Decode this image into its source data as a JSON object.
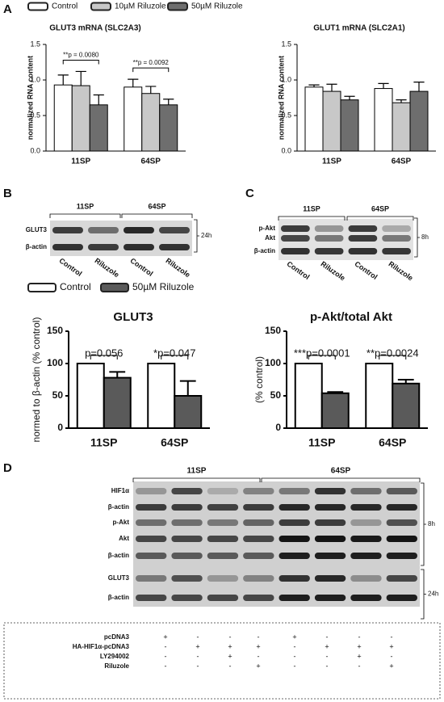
{
  "panel_labels": [
    "A",
    "B",
    "C",
    "D"
  ],
  "chart_data": [
    {
      "type": "bar",
      "title": "GLUT3 mRNA (SLC2A3)",
      "y_label": "normalized RNA content",
      "categories": [
        "11SP",
        "64SP"
      ],
      "series": [
        {
          "name": "Control",
          "color": "#ffffff",
          "values": [
            0.93,
            0.9
          ],
          "errors": [
            0.14,
            0.11
          ]
        },
        {
          "name": "10µM Riluzole",
          "color": "#c8c8c8",
          "values": [
            0.92,
            0.81
          ],
          "errors": [
            0.2,
            0.1
          ]
        },
        {
          "name": "50µM Riluzole",
          "color": "#6e6e6e",
          "values": [
            0.65,
            0.65
          ],
          "errors": [
            0.14,
            0.08
          ]
        }
      ],
      "annotations": [
        "**p = 0.0080",
        "**p = 0.0092"
      ],
      "ylim": [
        0,
        1.5
      ],
      "yticks": [
        {
          "value": 0,
          "label": "0.0"
        },
        0.5,
        {
          "value": 1,
          "label": "1.0"
        },
        1.5
      ]
    },
    {
      "type": "bar",
      "title": "GLUT1 mRNA (SLC2A1)",
      "y_label": "normalized RNA content",
      "categories": [
        "11SP",
        "64SP"
      ],
      "series": [
        {
          "color": "#ffffff",
          "values": [
            0.9,
            0.88
          ],
          "errors": [
            0.03,
            0.07
          ]
        },
        {
          "color": "#c8c8c8",
          "values": [
            0.84,
            0.68
          ],
          "errors": [
            0.1,
            0.04
          ]
        },
        {
          "color": "#6e6e6e",
          "values": [
            0.72,
            0.84
          ],
          "errors": [
            0.05,
            0.13
          ]
        }
      ],
      "annotations": [],
      "ylim": [
        0,
        1.5
      ],
      "yticks": [
        {
          "value": 0,
          "label": "0.0"
        },
        0.5,
        {
          "value": 1,
          "label": "1.0"
        },
        1.5
      ]
    },
    {
      "type": "bar",
      "title": "GLUT3",
      "y_label": "normed to β-actin (% control)",
      "categories": [
        "11SP",
        "64SP"
      ],
      "series": [
        {
          "name": "Control",
          "color": "#ffffff",
          "values": [
            100,
            100
          ],
          "errors": [
            0,
            0
          ]
        },
        {
          "name": "50µM Riluzole",
          "color": "#5a5a5a",
          "values": [
            78,
            50
          ],
          "errors": [
            9,
            23
          ]
        }
      ],
      "annotations": [
        "p=0.056",
        "*p=0.047"
      ],
      "ylim": [
        0,
        150
      ],
      "yticks": [
        0,
        50,
        100,
        150
      ]
    },
    {
      "type": "bar",
      "title": "p-Akt/total Akt",
      "y_label": "(% control)",
      "categories": [
        "11SP",
        "64SP"
      ],
      "series": [
        {
          "color": "#ffffff",
          "values": [
            100,
            100
          ],
          "errors": [
            0,
            0
          ]
        },
        {
          "color": "#5a5a5a",
          "values": [
            54,
            69
          ],
          "errors": [
            2,
            6
          ]
        }
      ],
      "annotations": [
        "***p=0.0001",
        "**p=0.0024"
      ],
      "ylim": [
        0,
        150
      ],
      "yticks": [
        0,
        50,
        100,
        150
      ]
    }
  ],
  "blot_b": {
    "groups": [
      "11SP",
      "64SP"
    ],
    "rows": [
      "GLUT3",
      "β-actin"
    ],
    "time": "24h",
    "lanes": [
      "Control",
      "Riluzole",
      "Control",
      "Riluzole"
    ]
  },
  "blot_c": {
    "groups": [
      "11SP",
      "64SP"
    ],
    "rows": [
      "p-Akt",
      "Akt",
      "β-actin"
    ],
    "time": "8h",
    "lanes": [
      "Control",
      "Riluzole",
      "Control",
      "Riluzole"
    ]
  },
  "blot_d": {
    "groups": [
      "11SP",
      "64SP"
    ],
    "rows": [
      "HIF1α",
      "β-actin",
      "p-Akt",
      "Akt",
      "β-actin",
      "GLUT3",
      "β-actin"
    ],
    "times": [
      "8h",
      "24h"
    ]
  },
  "treatment_table": {
    "rows": [
      {
        "label": "pcDNA3",
        "cells": [
          "+",
          "-",
          "-",
          "-",
          "+",
          "-",
          "-",
          "-"
        ]
      },
      {
        "label": "HA-HIF1α-pcDNA3",
        "cells": [
          "-",
          "+",
          "+",
          "+",
          "-",
          "+",
          "+",
          "+"
        ]
      },
      {
        "label": "LY294002",
        "cells": [
          "-",
          "-",
          "+",
          "-",
          "-",
          "-",
          "+",
          "-"
        ]
      },
      {
        "label": "Riluzole",
        "cells": [
          "-",
          "-",
          "-",
          "+",
          "-",
          "-",
          "-",
          "+"
        ]
      }
    ]
  }
}
